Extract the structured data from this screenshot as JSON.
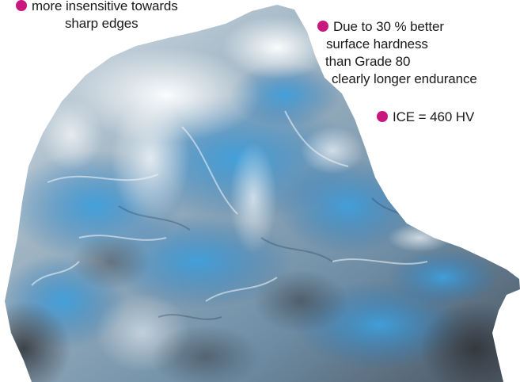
{
  "accent_color": "#c8177e",
  "callouts": {
    "edges": {
      "icon": "magenta-bullet-icon",
      "lines": [
        "more insensitive towards",
        "sharp edges"
      ]
    },
    "hardness": {
      "icon": "magenta-bullet-icon",
      "lines": [
        "Due to 30 % better",
        "surface hardness",
        "than Grade 80",
        "clearly longer endurance"
      ]
    },
    "ice_value": {
      "icon": "magenta-bullet-icon",
      "text": "ICE = 460 HV"
    }
  },
  "image": {
    "subject": "ice-block-photo",
    "colors": {
      "ice_light": "#e8eef3",
      "ice_mid": "#b9c6cf",
      "ice_blue": "#3c94cf",
      "ice_deep": "#2b74b3",
      "ice_shadow": "#3d4147"
    }
  }
}
